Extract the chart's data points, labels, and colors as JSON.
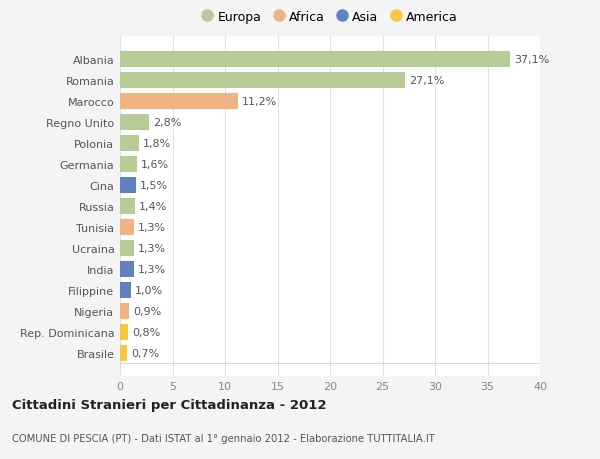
{
  "countries": [
    "Albania",
    "Romania",
    "Marocco",
    "Regno Unito",
    "Polonia",
    "Germania",
    "Cina",
    "Russia",
    "Tunisia",
    "Ucraina",
    "India",
    "Filippine",
    "Nigeria",
    "Rep. Dominicana",
    "Brasile"
  ],
  "values": [
    37.1,
    27.1,
    11.2,
    2.8,
    1.8,
    1.6,
    1.5,
    1.4,
    1.3,
    1.3,
    1.3,
    1.0,
    0.9,
    0.8,
    0.7
  ],
  "labels": [
    "37,1%",
    "27,1%",
    "11,2%",
    "2,8%",
    "1,8%",
    "1,6%",
    "1,5%",
    "1,4%",
    "1,3%",
    "1,3%",
    "1,3%",
    "1,0%",
    "0,9%",
    "0,8%",
    "0,7%"
  ],
  "continents": [
    "Europa",
    "Europa",
    "Africa",
    "Europa",
    "Europa",
    "Europa",
    "Asia",
    "Europa",
    "Africa",
    "Europa",
    "Asia",
    "Asia",
    "Africa",
    "America",
    "America"
  ],
  "colors": {
    "Europa": "#b5cc96",
    "Africa": "#f0b482",
    "Asia": "#6080c0",
    "America": "#f5c842"
  },
  "bg_color": "#f4f4f4",
  "plot_bg_color": "#ffffff",
  "grid_color": "#e8e8e8",
  "title": "Cittadini Stranieri per Cittadinanza - 2012",
  "subtitle": "COMUNE DI PESCIA (PT) - Dati ISTAT al 1° gennaio 2012 - Elaborazione TUTTITALIA.IT",
  "xlim": [
    0,
    40
  ],
  "xticks": [
    0,
    5,
    10,
    15,
    20,
    25,
    30,
    35,
    40
  ],
  "legend_order": [
    "Europa",
    "Africa",
    "Asia",
    "America"
  ]
}
